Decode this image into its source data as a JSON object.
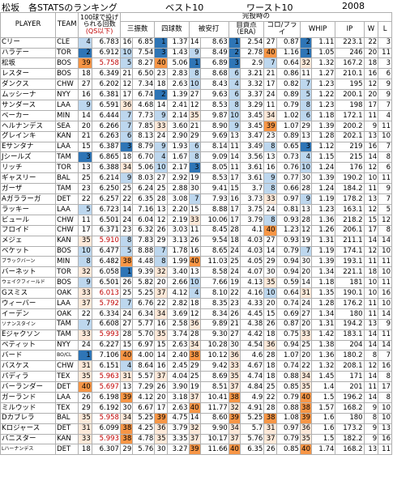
{
  "title": {
    "main": "松坂　各STATSのランキング",
    "best": "ベスト10",
    "worst": "ワースト10",
    "year": "2008"
  },
  "header": {
    "player": "PLAYER",
    "team": "TEAM",
    "pitches": "100球で投げられる回数",
    "qs_note": "(QS以下)",
    "at_completion": "完投時の",
    "so": "三振数",
    "bb": "四球数",
    "hits": "被安打",
    "er": "自責点（ERA）",
    "gofo": "ゴロ/フライ",
    "whip": "WHIP",
    "ip": "IP",
    "w": "W",
    "l": "L"
  },
  "colors": {
    "best_strong": "#2e75b6",
    "best_light": "#bdd7ee",
    "worst_strong": "#f79646",
    "worst_light": "#fde9d9",
    "red_text": "#c00000"
  },
  "rows": [
    [
      "Cリー",
      "CLE",
      "4",
      "6.783",
      "16",
      "6.85",
      "1",
      "1.37",
      "14",
      "8.63",
      "1",
      "2.54",
      "27",
      "0.87",
      "2",
      "1.11",
      "223.1",
      "22",
      "3"
    ],
    [
      "ハラデー",
      "TOR",
      "2",
      "6.912",
      "10",
      "7.54",
      "3",
      "1.43",
      "9",
      "8.49",
      "2",
      "2.78",
      "40",
      "1.16",
      "1",
      "1.05",
      "246",
      "20",
      "11"
    ],
    [
      "松坂",
      "BOS",
      "39",
      "5.758",
      "5",
      "8.27",
      "40",
      "5.06",
      "1",
      "6.89",
      "3",
      "2.9",
      "7",
      "0.64",
      "32",
      "1.32",
      "167.2",
      "18",
      "3"
    ],
    [
      "レスター",
      "BOS",
      "18",
      "6.349",
      "21",
      "6.50",
      "23",
      "2.83",
      "8",
      "8.68",
      "6",
      "3.21",
      "21",
      "0.86",
      "11",
      "1.27",
      "210.1",
      "16",
      "6"
    ],
    [
      "ダンクス",
      "CHW",
      "27",
      "6.202",
      "12",
      "7.34",
      "18",
      "2.63",
      "10",
      "8.43",
      "4",
      "3.32",
      "17",
      "0.82",
      "7",
      "1.23",
      "195",
      "12",
      "9"
    ],
    [
      "ムッシーナ",
      "NYY",
      "16",
      "6.381",
      "17",
      "6.74",
      "2",
      "1.39",
      "27",
      "9.63",
      "6",
      "3.37",
      "24",
      "0.89",
      "5",
      "1.22",
      "200.1",
      "20",
      "9"
    ],
    [
      "サンダース",
      "LAA",
      "9",
      "6.591",
      "36",
      "4.68",
      "14",
      "2.41",
      "12",
      "8.53",
      "8",
      "3.29",
      "11",
      "0.79",
      "8",
      "1.23",
      "198",
      "17",
      "7"
    ],
    [
      "ベーカー",
      "MIN",
      "14",
      "6.444",
      "7",
      "7.73",
      "9",
      "2.14",
      "35",
      "9.87",
      "10",
      "3.45",
      "34",
      "1.02",
      "6",
      "1.18",
      "172.1",
      "11",
      "4"
    ],
    [
      "ヘルナンデス",
      "SEA",
      "20",
      "6.266",
      "7",
      "7.85",
      "33",
      "3.60",
      "21",
      "8.90",
      "9",
      "3.45",
      "39",
      "1.07",
      "29",
      "1.39",
      "200.2",
      "9",
      "11"
    ],
    [
      "グレインキ",
      "KAN",
      "21",
      "6.263",
      "6",
      "8.13",
      "24",
      "2.90",
      "29",
      "9.69",
      "13",
      "3.47",
      "23",
      "0.89",
      "13",
      "1.28",
      "202.1",
      "13",
      "10"
    ],
    [
      "Eサンタナ",
      "LAA",
      "15",
      "6.387",
      "3",
      "8.79",
      "9",
      "1.93",
      "6",
      "8.14",
      "11",
      "3.49",
      "8",
      "0.65",
      "3",
      "1.12",
      "219",
      "16",
      "7"
    ],
    [
      "Jシールズ",
      "TAM",
      "3",
      "6.865",
      "18",
      "6.70",
      "4",
      "1.67",
      "8",
      "9.09",
      "14",
      "3.56",
      "13",
      "0.73",
      "4",
      "1.15",
      "215",
      "14",
      "8"
    ],
    [
      "リッチ",
      "TOR",
      "13",
      "6.388",
      "34",
      "5.06",
      "10",
      "2.17",
      "3",
      "8.05",
      "11",
      "3.61",
      "16",
      "0.76",
      "10",
      "1.24",
      "176",
      "12",
      "6"
    ],
    [
      "ギャスリー",
      "BAL",
      "25",
      "6.214",
      "9",
      "8.03",
      "27",
      "2.92",
      "19",
      "8.53",
      "17",
      "3.61",
      "9",
      "0.77",
      "30",
      "1.39",
      "190.2",
      "10",
      "11"
    ],
    [
      "ガーザ",
      "TAM",
      "23",
      "6.250",
      "25",
      "6.24",
      "25",
      "2.88",
      "30",
      "9.41",
      "15",
      "3.7",
      "8",
      "0.66",
      "28",
      "1.24",
      "184.2",
      "11",
      "9"
    ],
    [
      "Aガララーガ",
      "DET",
      "22",
      "6.257",
      "22",
      "6.35",
      "28",
      "3.08",
      "7",
      "7.93",
      "16",
      "3.73",
      "33",
      "0.97",
      "9",
      "1.19",
      "178.2",
      "13",
      "7"
    ],
    [
      "ラッキー",
      "LAA",
      "5",
      "6.723",
      "14",
      "7.16",
      "13",
      "2.20",
      "15",
      "8.88",
      "17",
      "3.75",
      "24",
      "0.81",
      "13",
      "1.23",
      "163.1",
      "12",
      "5"
    ],
    [
      "ビュール",
      "CHW",
      "11",
      "6.501",
      "24",
      "6.04",
      "12",
      "2.19",
      "33",
      "10.06",
      "17",
      "3.79",
      "8",
      "0.93",
      "28",
      "1.36",
      "218.2",
      "15",
      "12"
    ],
    [
      "フロイド",
      "CHW",
      "17",
      "6.371",
      "23",
      "6.32",
      "26",
      "3.03",
      "11",
      "8.45",
      "28",
      "4.1",
      "40",
      "1.23",
      "12",
      "1.26",
      "206.1",
      "17",
      "8"
    ],
    [
      "メジェ",
      "KAN",
      "35",
      "5.910",
      "8",
      "7.83",
      "29",
      "3.13",
      "26",
      "9.54",
      "18",
      "4.03",
      "27",
      "0.93",
      "19",
      "1.31",
      "211.1",
      "14",
      "14"
    ],
    [
      "ベケット",
      "BOS",
      "10",
      "6.477",
      "5",
      "8.88",
      "7",
      "1.78",
      "16",
      "8.65",
      "24",
      "4.03",
      "14",
      "0.79",
      "7",
      "1.19",
      "174.1",
      "12",
      "10"
    ],
    [
      "ブラックバーン",
      "MIN",
      "8",
      "6.482",
      "38",
      "4.48",
      "8",
      "1.99",
      "40",
      "11.03",
      "25",
      "4.05",
      "29",
      "0.94",
      "30",
      "1.39",
      "193.1",
      "11",
      "11"
    ],
    [
      "バーネット",
      "TOR",
      "32",
      "6.058",
      "1",
      "9.39",
      "32",
      "3.40",
      "13",
      "8.58",
      "24",
      "4.07",
      "30",
      "0.94",
      "20",
      "1.34",
      "221.1",
      "18",
      "10"
    ],
    [
      "ウェイクフィールド",
      "BOS",
      "9",
      "6.501",
      "26",
      "5.82",
      "20",
      "2.66",
      "10",
      "7.66",
      "19",
      "4.13",
      "35",
      "0.59",
      "14",
      "1.18",
      "181",
      "10",
      "11"
    ],
    [
      "Gスミス",
      "OAK",
      "33",
      "6.013",
      "25",
      "5.25",
      "37",
      "4.12",
      "4",
      "8.10",
      "22",
      "4.16",
      "10",
      "0.64",
      "31",
      "1.35",
      "190.1",
      "10",
      "16"
    ],
    [
      "ウィーバー",
      "LAA",
      "37",
      "5.792",
      "7",
      "6.76",
      "22",
      "2.82",
      "18",
      "8.35",
      "23",
      "4.33",
      "20",
      "0.74",
      "24",
      "1.28",
      "176.2",
      "11",
      "10"
    ],
    [
      "イーデン",
      "OAK",
      "22",
      "6.334",
      "24",
      "6.34",
      "34",
      "3.69",
      "12",
      "8.34",
      "26",
      "4.45",
      "15",
      "0.69",
      "27",
      "1.34",
      "180",
      "11",
      "14"
    ],
    [
      "ソナンスタイン",
      "TAM",
      "7",
      "6.608",
      "27",
      "5.77",
      "16",
      "2.58",
      "36",
      "9.89",
      "21",
      "4.38",
      "26",
      "0.87",
      "20",
      "1.31",
      "194.2",
      "13",
      "9"
    ],
    [
      "Eジャクソン",
      "TAM",
      "33",
      "5.993",
      "28",
      "5.70",
      "35",
      "3.74",
      "28",
      "9.30",
      "27",
      "4.42",
      "18",
      "0.75",
      "33",
      "1.42",
      "183.1",
      "14",
      "11"
    ],
    [
      "ベティット",
      "NYY",
      "24",
      "6.227",
      "15",
      "6.97",
      "15",
      "2.63",
      "34",
      "10.28",
      "30",
      "4.54",
      "36",
      "0.94",
      "25",
      "1.38",
      "204",
      "14",
      "14"
    ],
    [
      "バード",
      "BO/CL",
      "1",
      "7.106",
      "40",
      "4.00",
      "14",
      "2.40",
      "38",
      "10.12",
      "36",
      "4.6",
      "28",
      "1.07",
      "20",
      "1.36",
      "180.2",
      "8",
      "7"
    ],
    [
      "バスケス",
      "CHW",
      "31",
      "6.151",
      "4",
      "8.64",
      "16",
      "2.45",
      "29",
      "9.42",
      "33",
      "4.67",
      "18",
      "0.74",
      "22",
      "1.32",
      "208.1",
      "12",
      "16"
    ],
    [
      "パディラ",
      "TEX",
      "35",
      "5.963",
      "31",
      "5.57",
      "37",
      "4.04",
      "25",
      "8.69",
      "35",
      "4.74",
      "18",
      "0.88",
      "34",
      "1.45",
      "171",
      "14",
      "8"
    ],
    [
      "バーランダー",
      "DET",
      "40",
      "5.697",
      "13",
      "7.29",
      "26",
      "3.90",
      "19",
      "8.51",
      "37",
      "4.84",
      "25",
      "0.85",
      "35",
      "1.4",
      "201",
      "11",
      "17"
    ],
    [
      "ガーランド",
      "LAA",
      "26",
      "6.198",
      "39",
      "4.12",
      "20",
      "3.18",
      "37",
      "10.41",
      "38",
      "4.9",
      "22",
      "0.79",
      "40",
      "1.5",
      "196.2",
      "14",
      "8"
    ],
    [
      "ミルウッド",
      "TEX",
      "29",
      "6.192",
      "30",
      "6.67",
      "17",
      "2.63",
      "40",
      "11.77",
      "32",
      "4.91",
      "28",
      "0.88",
      "38",
      "1.57",
      "168.2",
      "9",
      "10"
    ],
    [
      "Dカブレラ",
      "BAL",
      "35",
      "5.958",
      "34",
      "5.25",
      "39",
      "4.75",
      "14",
      "8.60",
      "39",
      "5.25",
      "38",
      "1.08",
      "39",
      "1.6",
      "180",
      "8",
      "10"
    ],
    [
      "Kロジャース",
      "DET",
      "31",
      "6.099",
      "38",
      "4.25",
      "36",
      "3.79",
      "32",
      "9.90",
      "34",
      "5.7",
      "31",
      "0.97",
      "36",
      "1.6",
      "173.2",
      "9",
      "13"
    ],
    [
      "バニスター",
      "KAN",
      "33",
      "5.993",
      "38",
      "4.78",
      "35",
      "3.35",
      "37",
      "10.17",
      "37",
      "5.76",
      "37",
      "0.79",
      "35",
      "1.5",
      "182.2",
      "9",
      "16"
    ],
    [
      "Lハーナンデス",
      "DET",
      "18",
      "6.307",
      "29",
      "5.76",
      "30",
      "3.27",
      "39",
      "11.66",
      "40",
      "6.35",
      "26",
      "0.85",
      "40",
      "1.74",
      "168.2",
      "13",
      "11"
    ]
  ]
}
